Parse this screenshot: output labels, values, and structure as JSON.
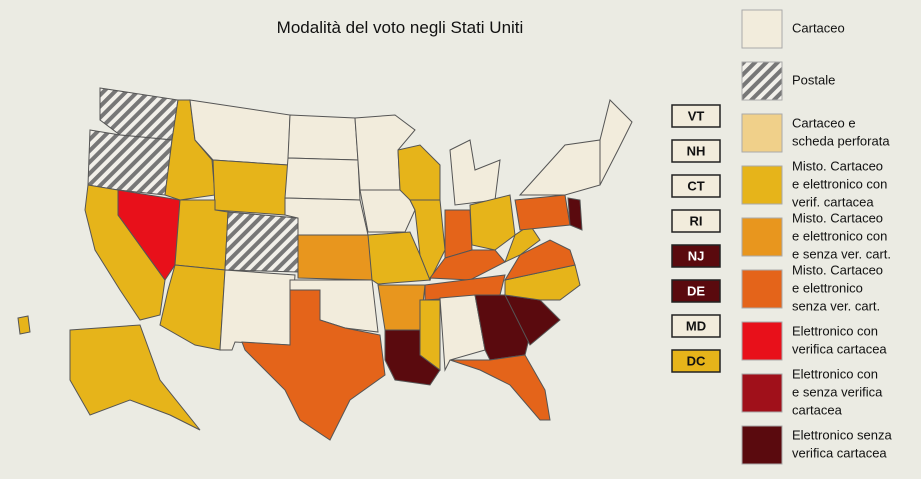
{
  "title": "Modalità del voto negli Stati Uniti",
  "legend": [
    {
      "lines": [
        "Cartaceo"
      ],
      "color": "#f2ecdc"
    },
    {
      "lines": [
        "Postale"
      ],
      "color": "#8a8a8a",
      "hatch": true
    },
    {
      "lines": [
        "Cartaceo e",
        "scheda perforata"
      ],
      "color": "#f0d08a"
    },
    {
      "lines": [
        "Misto. Cartaceo",
        "e elettronico con",
        "verif. cartacea"
      ],
      "color": "#e6b41a"
    },
    {
      "lines": [
        "Misto. Cartaceo",
        "e elettronico con",
        "e senza ver. cart."
      ],
      "color": "#e8961e"
    },
    {
      "lines": [
        "Misto. Cartaceo",
        "e elettronico",
        "senza ver. cart."
      ],
      "color": "#e4641a"
    },
    {
      "lines": [
        "Elettronico con",
        "verifica cartacea"
      ],
      "color": "#e8101a"
    },
    {
      "lines": [
        "Elettronico con",
        "e senza verifica",
        "cartacea"
      ],
      "color": "#a0101a"
    },
    {
      "lines": [
        "Elettronico senza",
        "verifica cartacea"
      ],
      "color": "#5a0a0e"
    }
  ],
  "small_states": [
    {
      "label": "VT",
      "category": 0
    },
    {
      "label": "NH",
      "category": 0
    },
    {
      "label": "CT",
      "category": 0
    },
    {
      "label": "RI",
      "category": 0
    },
    {
      "label": "NJ",
      "category": 8
    },
    {
      "label": "DE",
      "category": 8
    },
    {
      "label": "MD",
      "category": 0
    },
    {
      "label": "DC",
      "category": 3
    }
  ]
}
